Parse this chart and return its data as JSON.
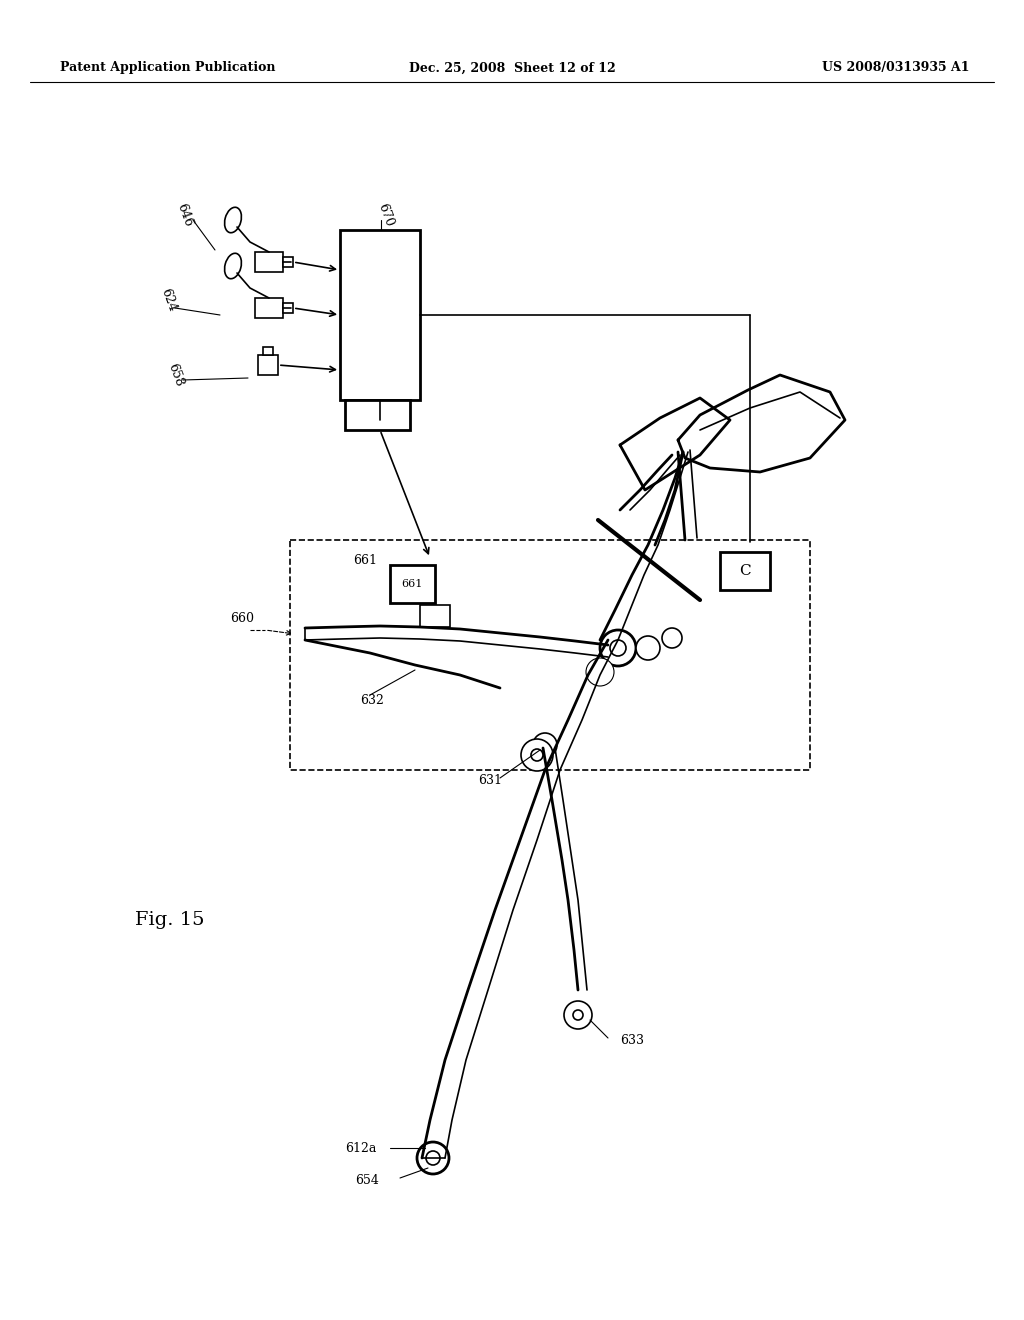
{
  "background_color": "#ffffff",
  "header_left": "Patent Application Publication",
  "header_center": "Dec. 25, 2008  Sheet 12 of 12",
  "header_right": "US 2008/0313935 A1"
}
